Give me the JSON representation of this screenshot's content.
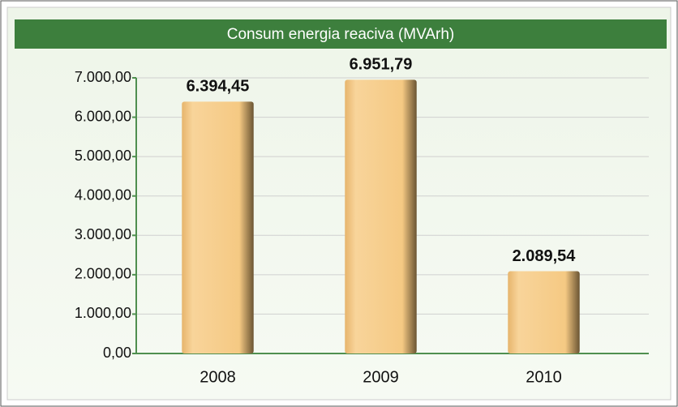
{
  "chart_data": {
    "type": "bar",
    "title": "Consum energia reaciva (MVArh)",
    "categories": [
      "2008",
      "2009",
      "2010"
    ],
    "values": [
      6394.45,
      6951.79,
      2089.54
    ],
    "value_labels": [
      "6.394,45",
      "6.951,79",
      "2.089,54"
    ],
    "color": "#f5c983",
    "ylim": [
      0,
      7000
    ],
    "yticks": [
      {
        "value": 0,
        "label": "0,00"
      },
      {
        "value": 1000,
        "label": "1.000,00"
      },
      {
        "value": 2000,
        "label": "2.000,00"
      },
      {
        "value": 3000,
        "label": "3.000,00"
      },
      {
        "value": 4000,
        "label": "4.000,00"
      },
      {
        "value": 5000,
        "label": "5.000,00"
      },
      {
        "value": 6000,
        "label": "6.000,00"
      },
      {
        "value": 7000,
        "label": "7.000,00"
      }
    ],
    "grid": true
  }
}
